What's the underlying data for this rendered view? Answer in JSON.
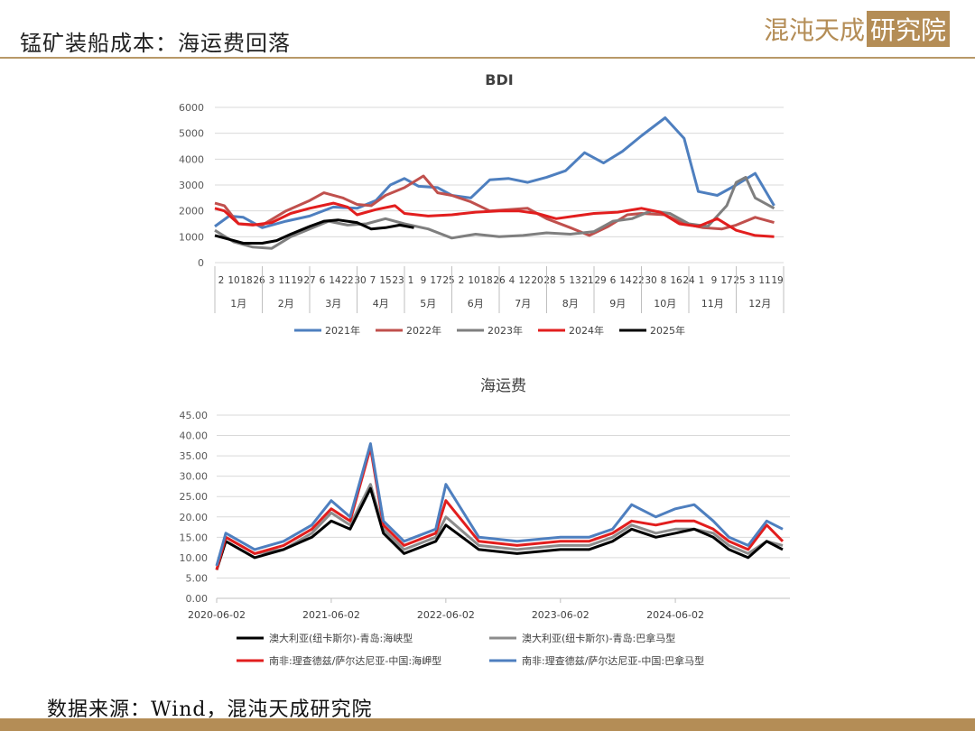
{
  "header": {
    "title": "锰矿装船成本：海运费回落",
    "logo_text": "混沌天成",
    "logo_box_text": "研究院",
    "accent": "#b48d56"
  },
  "footer": {
    "source": "数据来源：Wind，混沌天成研究院"
  },
  "chart_data": [
    {
      "type": "line",
      "title": "BDI",
      "ylim": [
        0,
        6000
      ],
      "yticks": [
        "0",
        "1000",
        "2000",
        "3000",
        "4000",
        "5000",
        "6000"
      ],
      "grid": true,
      "legend": "bottom",
      "x": [
        1,
        2,
        3,
        4,
        5,
        6,
        7,
        8,
        9,
        10,
        11,
        12
      ],
      "x_unit_labels": [
        "1月",
        "2月",
        "3月",
        "4月",
        "5月",
        "6月",
        "7月",
        "8月",
        "9月",
        "10月",
        "11月",
        "12月"
      ],
      "x_day_labels": [
        "2",
        "10",
        "18",
        "26",
        "3",
        "11",
        "19",
        "27",
        "6",
        "14",
        "22",
        "30",
        "7",
        "15",
        "23",
        "1",
        "9",
        "17",
        "25",
        "2",
        "10",
        "18",
        "26",
        "4",
        "12",
        "20",
        "28",
        "5",
        "13",
        "21",
        "29",
        "6",
        "14",
        "22",
        "30",
        "8",
        "16",
        "24",
        "1",
        "9",
        "17",
        "25",
        "3",
        "11",
        "19"
      ],
      "series": [
        {
          "name": "2021年",
          "color": "#4e7fbf",
          "values": [
            [
              1,
              1400
            ],
            [
              1.3,
              1800
            ],
            [
              1.6,
              1750
            ],
            [
              2,
              1350
            ],
            [
              2.5,
              1600
            ],
            [
              3,
              1800
            ],
            [
              3.5,
              2150
            ],
            [
              4,
              2100
            ],
            [
              4.4,
              2400
            ],
            [
              4.7,
              3000
            ],
            [
              5,
              3250
            ],
            [
              5.3,
              2950
            ],
            [
              5.7,
              2900
            ],
            [
              6,
              2600
            ],
            [
              6.4,
              2500
            ],
            [
              6.8,
              3200
            ],
            [
              7.2,
              3250
            ],
            [
              7.6,
              3100
            ],
            [
              8,
              3300
            ],
            [
              8.4,
              3550
            ],
            [
              8.8,
              4250
            ],
            [
              9.2,
              3850
            ],
            [
              9.6,
              4300
            ],
            [
              10,
              4900
            ],
            [
              10.5,
              5600
            ],
            [
              10.9,
              4800
            ],
            [
              11.2,
              2750
            ],
            [
              11.6,
              2600
            ],
            [
              12,
              3000
            ],
            [
              12.4,
              3450
            ],
            [
              12.8,
              2200
            ]
          ]
        },
        {
          "name": "2022年",
          "color": "#c0504d",
          "values": [
            [
              1,
              2300
            ],
            [
              1.2,
              2200
            ],
            [
              1.5,
              1500
            ],
            [
              2,
              1450
            ],
            [
              2.5,
              2000
            ],
            [
              3,
              2400
            ],
            [
              3.3,
              2700
            ],
            [
              3.7,
              2500
            ],
            [
              4,
              2250
            ],
            [
              4.3,
              2200
            ],
            [
              4.6,
              2600
            ],
            [
              5,
              2900
            ],
            [
              5.4,
              3350
            ],
            [
              5.7,
              2700
            ],
            [
              6,
              2600
            ],
            [
              6.4,
              2350
            ],
            [
              6.8,
              2000
            ],
            [
              7.2,
              2050
            ],
            [
              7.6,
              2100
            ],
            [
              8,
              1700
            ],
            [
              8.5,
              1350
            ],
            [
              8.9,
              1050
            ],
            [
              9.3,
              1400
            ],
            [
              9.7,
              1850
            ],
            [
              10,
              1900
            ],
            [
              10.5,
              1850
            ],
            [
              10.9,
              1500
            ],
            [
              11.3,
              1350
            ],
            [
              11.7,
              1300
            ],
            [
              12,
              1450
            ],
            [
              12.4,
              1750
            ],
            [
              12.8,
              1550
            ]
          ]
        },
        {
          "name": "2023年",
          "color": "#7f7f7f",
          "values": [
            [
              1,
              1250
            ],
            [
              1.4,
              800
            ],
            [
              1.8,
              600
            ],
            [
              2.2,
              550
            ],
            [
              2.6,
              1000
            ],
            [
              3,
              1300
            ],
            [
              3.4,
              1600
            ],
            [
              3.8,
              1450
            ],
            [
              4.2,
              1500
            ],
            [
              4.6,
              1700
            ],
            [
              5,
              1500
            ],
            [
              5.5,
              1300
            ],
            [
              6,
              950
            ],
            [
              6.5,
              1100
            ],
            [
              7,
              1000
            ],
            [
              7.5,
              1050
            ],
            [
              8,
              1150
            ],
            [
              8.5,
              1100
            ],
            [
              9,
              1200
            ],
            [
              9.4,
              1600
            ],
            [
              9.8,
              1700
            ],
            [
              10.2,
              2000
            ],
            [
              10.6,
              1900
            ],
            [
              11,
              1500
            ],
            [
              11.4,
              1400
            ],
            [
              11.8,
              2200
            ],
            [
              12,
              3100
            ],
            [
              12.2,
              3300
            ],
            [
              12.4,
              2500
            ],
            [
              12.8,
              2100
            ]
          ]
        },
        {
          "name": "2024年",
          "color": "#e21e1e",
          "values": [
            [
              1,
              2100
            ],
            [
              1.2,
              2000
            ],
            [
              1.5,
              1500
            ],
            [
              1.8,
              1450
            ],
            [
              2.2,
              1550
            ],
            [
              2.6,
              1900
            ],
            [
              3,
              2100
            ],
            [
              3.5,
              2300
            ],
            [
              3.8,
              2150
            ],
            [
              4,
              1850
            ],
            [
              4.4,
              2050
            ],
            [
              4.8,
              2200
            ],
            [
              5,
              1900
            ],
            [
              5.5,
              1800
            ],
            [
              6,
              1850
            ],
            [
              6.5,
              1950
            ],
            [
              7,
              2000
            ],
            [
              7.4,
              2000
            ],
            [
              7.8,
              1900
            ],
            [
              8.2,
              1700
            ],
            [
              8.6,
              1800
            ],
            [
              9,
              1900
            ],
            [
              9.5,
              1950
            ],
            [
              10,
              2100
            ],
            [
              10.4,
              1950
            ],
            [
              10.8,
              1500
            ],
            [
              11.2,
              1400
            ],
            [
              11.6,
              1700
            ],
            [
              12,
              1250
            ],
            [
              12.4,
              1050
            ],
            [
              12.8,
              1000
            ]
          ]
        },
        {
          "name": "2025年",
          "color": "#000000",
          "values": [
            [
              1,
              1050
            ],
            [
              1.3,
              900
            ],
            [
              1.6,
              750
            ],
            [
              2,
              750
            ],
            [
              2.3,
              850
            ],
            [
              2.6,
              1100
            ],
            [
              3,
              1400
            ],
            [
              3.3,
              1600
            ],
            [
              3.6,
              1650
            ],
            [
              4,
              1550
            ],
            [
              4.3,
              1300
            ],
            [
              4.6,
              1350
            ],
            [
              4.9,
              1450
            ],
            [
              5.2,
              1350
            ]
          ]
        }
      ]
    },
    {
      "type": "line",
      "title": "海运费",
      "ylim": [
        0,
        45
      ],
      "yticks": [
        "0.00",
        "5.00",
        "10.00",
        "15.00",
        "20.00",
        "25.00",
        "30.00",
        "35.00",
        "40.00",
        "45.00"
      ],
      "xlim": [
        "2020-06-02",
        "2025-06-02"
      ],
      "xticks": [
        "2020-06-02",
        "2021-06-02",
        "2022-06-02",
        "2023-06-02",
        "2024-06-02"
      ],
      "grid": true,
      "legend": "bottom",
      "x": [
        "2020-06-02",
        "2020-07-01",
        "2020-10-01",
        "2021-01-01",
        "2021-04-01",
        "2021-06-02",
        "2021-08-01",
        "2021-10-05",
        "2021-11-15",
        "2022-01-20",
        "2022-05-01",
        "2022-06-02",
        "2022-09-15",
        "2023-01-15",
        "2023-06-02",
        "2023-09-01",
        "2023-11-15",
        "2024-01-15",
        "2024-04-01",
        "2024-06-02",
        "2024-08-01",
        "2024-10-01",
        "2024-11-20",
        "2025-01-20",
        "2025-03-20",
        "2025-05-10"
      ],
      "series": [
        {
          "name": "澳大利亚(纽卡斯尔)-青岛:海峡型",
          "color": "#000000",
          "values": [
            7,
            14,
            10,
            12,
            15,
            19,
            17,
            27,
            16,
            11,
            14,
            18,
            12,
            11,
            12,
            12,
            14,
            17,
            15,
            16,
            17,
            15,
            12,
            10,
            14,
            12
          ]
        },
        {
          "name": "澳大利亚(纽卡斯尔)-青岛:巴拿马型",
          "color": "#8c8c8c",
          "values": [
            8,
            15,
            11,
            12,
            16,
            21,
            18,
            28,
            17,
            12,
            15,
            20,
            13,
            12,
            13,
            13,
            15,
            18,
            16,
            17,
            17,
            16,
            13,
            11,
            14,
            13
          ]
        },
        {
          "name": "南非:理查德兹/萨尔达尼亚-中国:海岬型",
          "color": "#e21e1e",
          "values": [
            7,
            15,
            11,
            13,
            17,
            22,
            19,
            37,
            18,
            13,
            16,
            24,
            14,
            13,
            14,
            14,
            16,
            19,
            18,
            19,
            19,
            17,
            14,
            12,
            18,
            14
          ]
        },
        {
          "name": "南非:理查德兹/萨尔达尼亚-中国:巴拿马型",
          "color": "#4e7fbf",
          "values": [
            8,
            16,
            12,
            14,
            18,
            24,
            20,
            38,
            19,
            14,
            17,
            28,
            15,
            14,
            15,
            15,
            17,
            23,
            20,
            22,
            23,
            19,
            15,
            13,
            19,
            17
          ]
        }
      ]
    }
  ]
}
